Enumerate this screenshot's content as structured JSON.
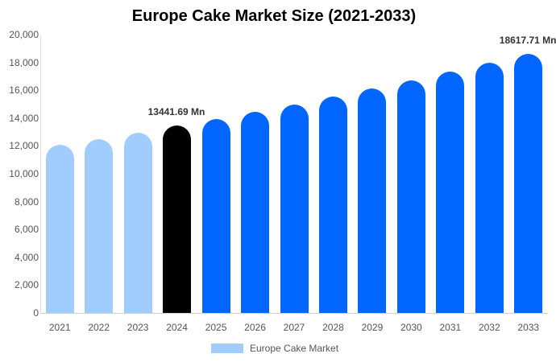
{
  "chart_data": {
    "type": "bar",
    "title": "Europe Cake Market Size (2021-2033)",
    "xlabel": "",
    "ylabel": "",
    "ylim": [
      0,
      20000
    ],
    "yticks": [
      "0",
      "2,000",
      "4,000",
      "6,000",
      "8,000",
      "10,000",
      "12,000",
      "14,000",
      "16,000",
      "18,000",
      "20,000"
    ],
    "categories": [
      "2021",
      "2022",
      "2023",
      "2024",
      "2025",
      "2026",
      "2027",
      "2028",
      "2029",
      "2030",
      "2031",
      "2032",
      "2033"
    ],
    "series": [
      {
        "name": "Europe Cake Market",
        "values": [
          12060,
          12500,
          12960,
          13441.69,
          13938,
          14452,
          14985,
          15538,
          16112,
          16706,
          17323,
          17962,
          18617.71
        ]
      }
    ],
    "bar_colors": [
      "#a0cdfd",
      "#a0cdfd",
      "#a0cdfd",
      "#000000",
      "#0066ff",
      "#0066ff",
      "#0066ff",
      "#0066ff",
      "#0066ff",
      "#0066ff",
      "#0066ff",
      "#0066ff",
      "#0066ff"
    ],
    "annotations": [
      {
        "category": "2024",
        "text": "13441.69 Mn"
      },
      {
        "category": "2033",
        "text": "18617.71 Mn"
      }
    ],
    "grid": false,
    "legend_position": "bottom"
  },
  "legend": {
    "label": "Europe Cake Market",
    "color": "#a0cdfd"
  }
}
